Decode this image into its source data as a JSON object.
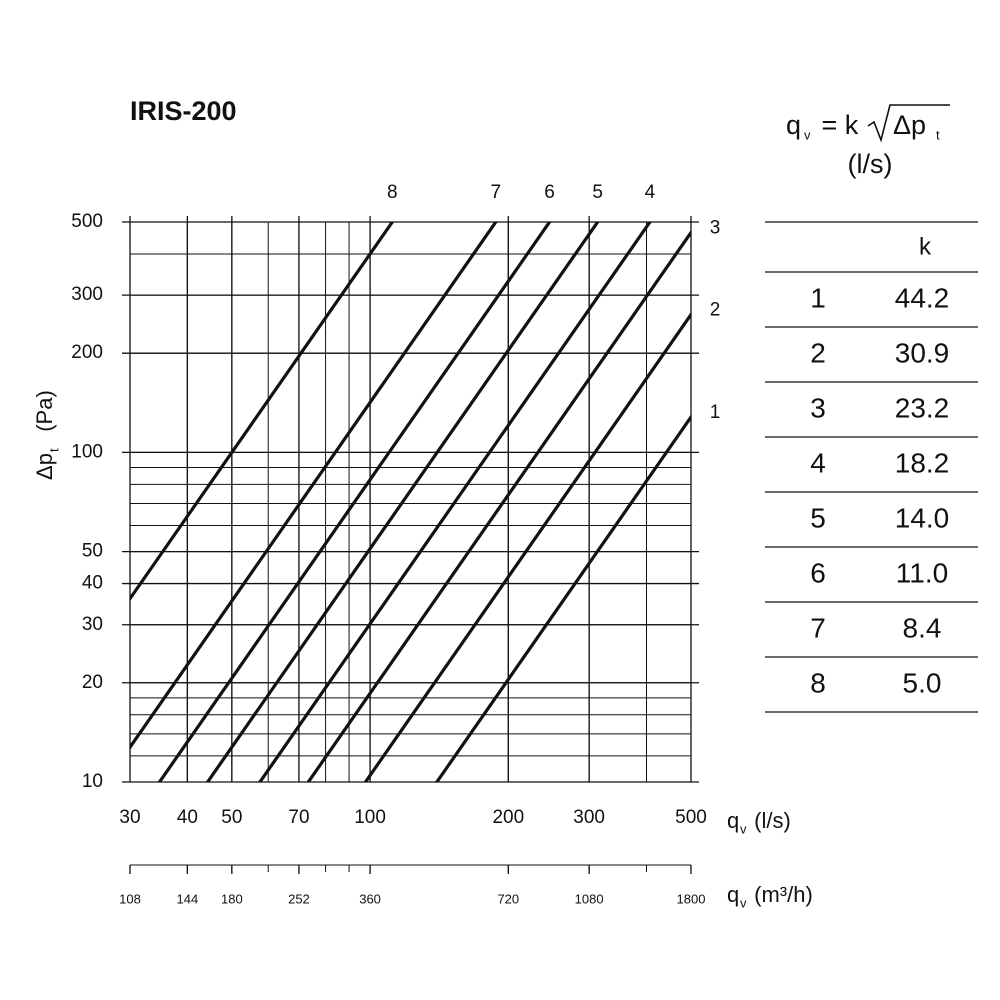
{
  "chart_data": {
    "type": "line",
    "title": "IRIS-200",
    "formula": {
      "lhs": "q",
      "lhs_sub": "v",
      "mid": " = k",
      "radicand": "Δp",
      "radicand_sub": "t",
      "unit": "(l/s)"
    },
    "xlabel": {
      "symbol": "q",
      "sub": "v",
      "unit": " (l/s)"
    },
    "x2label": {
      "symbol": "q",
      "sub": "v",
      "unit": " (m³/h)"
    },
    "ylabel": {
      "symbol": "Δp",
      "sub": "t",
      "unit": "  (Pa)"
    },
    "log_x": true,
    "log_y": true,
    "grid": true,
    "xlim": [
      30,
      500
    ],
    "xticks": [
      30,
      40,
      50,
      70,
      100,
      200,
      300,
      500
    ],
    "x2lim": [
      108,
      1800
    ],
    "x2ticks": [
      108,
      144,
      180,
      252,
      360,
      720,
      1080,
      1800
    ],
    "ylim": [
      10,
      500
    ],
    "yticks": [
      10,
      20,
      30,
      40,
      50,
      100,
      200,
      300,
      500
    ],
    "table_header": "k",
    "color": "#111111",
    "series": [
      {
        "name": "1",
        "k": 44.2,
        "k_label": "44.2"
      },
      {
        "name": "2",
        "k": 30.9,
        "k_label": "30.9"
      },
      {
        "name": "3",
        "k": 23.2,
        "k_label": "23.2"
      },
      {
        "name": "4",
        "k": 18.2,
        "k_label": "18.2"
      },
      {
        "name": "5",
        "k": 14.0,
        "k_label": "14.0"
      },
      {
        "name": "6",
        "k": 11.0,
        "k_label": "11.0"
      },
      {
        "name": "7",
        "k": 8.4,
        "k_label": "8.4"
      },
      {
        "name": "8",
        "k": 5.0,
        "k_label": "5.0"
      }
    ]
  }
}
